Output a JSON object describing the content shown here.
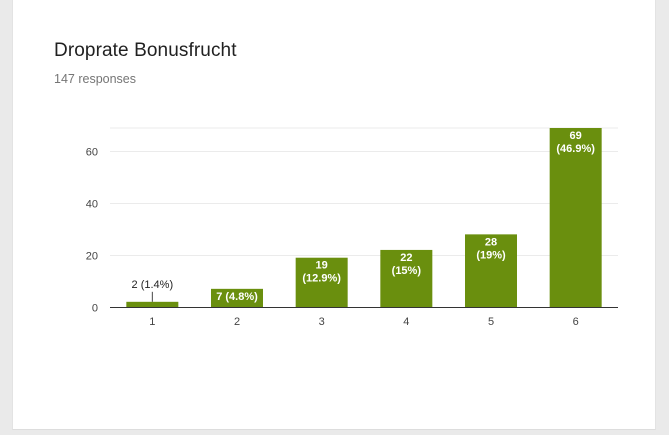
{
  "card": {
    "title": "Droprate Bonusfrucht",
    "subtitle": "147 responses"
  },
  "chart_data": {
    "type": "bar",
    "title": "Droprate Bonusfrucht",
    "subtitle": "147 responses",
    "xlabel": "",
    "ylabel": "",
    "categories": [
      "1",
      "2",
      "3",
      "4",
      "5",
      "6"
    ],
    "values": [
      2,
      7,
      19,
      22,
      28,
      69
    ],
    "data_labels": [
      [
        "2 (1.4%)"
      ],
      [
        "7 (4.8%)"
      ],
      [
        "19",
        "(12.9%)"
      ],
      [
        "22",
        "(15%)"
      ],
      [
        "28",
        "(19%)"
      ],
      [
        "69",
        "(46.9%)"
      ]
    ],
    "y_ticks": [
      0,
      20,
      40,
      60
    ],
    "ylim": [
      0,
      69
    ],
    "grid": true,
    "legend": "none",
    "bar_color": "#6a8f0e",
    "gridline_color": "#ebebeb",
    "baseline_color": "#333333"
  }
}
